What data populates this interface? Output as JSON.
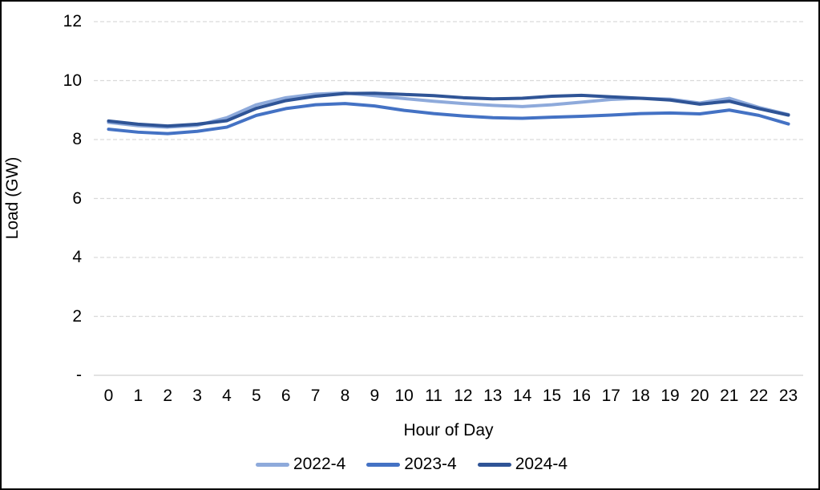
{
  "chart_data": {
    "type": "line",
    "title": "",
    "xlabel": "Hour of Day",
    "ylabel": "Load (GW)",
    "x": [
      0,
      1,
      2,
      3,
      4,
      5,
      6,
      7,
      8,
      9,
      10,
      11,
      12,
      13,
      14,
      15,
      16,
      17,
      18,
      19,
      20,
      21,
      22,
      23
    ],
    "xtick_labels": [
      "0",
      "1",
      "2",
      "3",
      "4",
      "5",
      "6",
      "7",
      "8",
      "9",
      "10",
      "11",
      "12",
      "13",
      "14",
      "15",
      "16",
      "17",
      "18",
      "19",
      "20",
      "21",
      "22",
      "23"
    ],
    "ylim": [
      0,
      12
    ],
    "yticks": [
      0,
      2,
      4,
      6,
      8,
      10,
      12
    ],
    "ytick_labels": [
      "-",
      "2",
      "4",
      "6",
      "8",
      "10",
      "12"
    ],
    "grid": "dashed horizontal gridlines",
    "grid_color": "#D9D9D9",
    "axis_line_color": "#D9D9D9",
    "legend_position": "bottom center",
    "series": [
      {
        "name": "2022-4",
        "color": "#8EAADB",
        "values": [
          8.58,
          8.47,
          8.42,
          8.48,
          8.74,
          9.18,
          9.42,
          9.54,
          9.58,
          9.49,
          9.39,
          9.3,
          9.22,
          9.16,
          9.12,
          9.18,
          9.27,
          9.36,
          9.4,
          9.37,
          9.24,
          9.4,
          9.09,
          8.85
        ]
      },
      {
        "name": "2023-4",
        "color": "#4472C4",
        "values": [
          8.35,
          8.25,
          8.2,
          8.28,
          8.42,
          8.82,
          9.05,
          9.18,
          9.22,
          9.14,
          8.99,
          8.88,
          8.8,
          8.74,
          8.72,
          8.76,
          8.79,
          8.83,
          8.88,
          8.9,
          8.87,
          9.0,
          8.82,
          8.53
        ]
      },
      {
        "name": "2024-4",
        "color": "#2F5496",
        "values": [
          8.63,
          8.52,
          8.46,
          8.52,
          8.64,
          9.06,
          9.32,
          9.47,
          9.56,
          9.57,
          9.53,
          9.49,
          9.42,
          9.38,
          9.4,
          9.47,
          9.5,
          9.45,
          9.4,
          9.34,
          9.2,
          9.3,
          9.05,
          8.83
        ]
      }
    ]
  }
}
